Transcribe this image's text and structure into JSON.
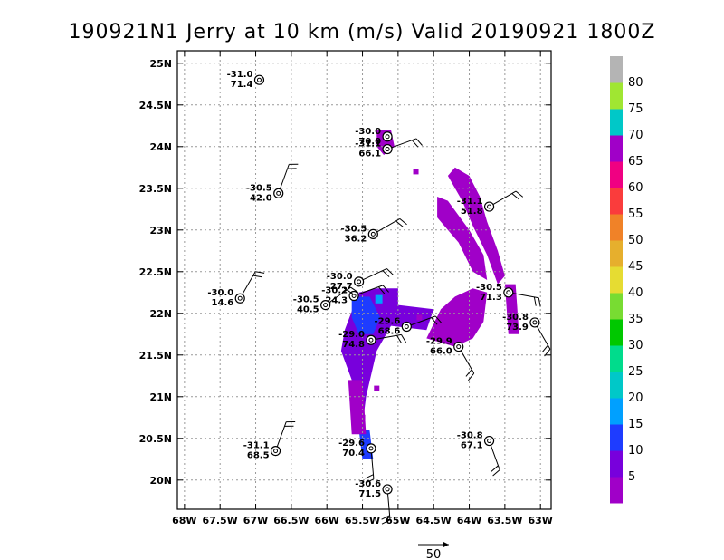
{
  "title": "190921N1 Jerry at 10 km (m/s) Valid 20190921  1800Z",
  "map": {
    "lon_range": [
      -68.1,
      -62.85
    ],
    "lat_range": [
      19.65,
      25.15
    ],
    "lon_ticks": [
      {
        "v": -68,
        "label": "68W"
      },
      {
        "v": -67.5,
        "label": "67.5W"
      },
      {
        "v": -67,
        "label": "67W"
      },
      {
        "v": -66.5,
        "label": "66.5W"
      },
      {
        "v": -66,
        "label": "66W"
      },
      {
        "v": -65.5,
        "label": "65.5W"
      },
      {
        "v": -65,
        "label": "65W"
      },
      {
        "v": -64.5,
        "label": "64.5W"
      },
      {
        "v": -64,
        "label": "64W"
      },
      {
        "v": -63.5,
        "label": "63.5W"
      },
      {
        "v": -63,
        "label": "63W"
      }
    ],
    "lat_ticks": [
      {
        "v": 20,
        "label": "20N"
      },
      {
        "v": 20.5,
        "label": "20.5N"
      },
      {
        "v": 21,
        "label": "21N"
      },
      {
        "v": 21.5,
        "label": "21.5N"
      },
      {
        "v": 22,
        "label": "22N"
      },
      {
        "v": 22.5,
        "label": "22.5N"
      },
      {
        "v": 23,
        "label": "23N"
      },
      {
        "v": 23.5,
        "label": "23.5N"
      },
      {
        "v": 24,
        "label": "24N"
      },
      {
        "v": 24.5,
        "label": "24.5N"
      },
      {
        "v": 25,
        "label": "25N"
      }
    ],
    "grid": true
  },
  "colorbar": {
    "labels": [
      "5",
      "10",
      "15",
      "20",
      "25",
      "30",
      "35",
      "40",
      "45",
      "50",
      "55",
      "60",
      "65",
      "70",
      "75",
      "80"
    ],
    "colors": [
      "#a000c8",
      "#7800dc",
      "#1e3cff",
      "#00a0ff",
      "#00c8c8",
      "#00dc8c",
      "#00c800",
      "#78dc32",
      "#e6dc32",
      "#e6af2d",
      "#f08228",
      "#fa3c3c",
      "#f00082",
      "#a000c8",
      "#00c8c8",
      "#a0e632",
      "#b4b4b4"
    ]
  },
  "vector_key": {
    "label": "50"
  },
  "storm_markers": [
    {
      "lon": -66.95,
      "lat": 24.8,
      "t1": "-31.0",
      "t2": "71.4",
      "barb": false
    },
    {
      "lon": -65.15,
      "lat": 24.12,
      "t1": "-30.0",
      "t2": "70.0",
      "barb": false
    },
    {
      "lon": -65.15,
      "lat": 23.97,
      "t1": "-31.1",
      "t2": "66.1",
      "barb": true,
      "dir": 70
    },
    {
      "lon": -66.68,
      "lat": 23.44,
      "t1": "-30.5",
      "t2": "42.0",
      "barb": true,
      "dir": 20
    },
    {
      "lon": -63.72,
      "lat": 23.28,
      "t1": "-31.1",
      "t2": "51.8",
      "barb": true,
      "dir": 60
    },
    {
      "lon": -65.35,
      "lat": 22.95,
      "t1": "-30.5",
      "t2": "36.2",
      "barb": true,
      "dir": 60
    },
    {
      "lon": -67.22,
      "lat": 22.18,
      "t1": "-30.0",
      "t2": "14.6",
      "barb": true,
      "dir": 30
    },
    {
      "lon": -65.55,
      "lat": 22.38,
      "t1": "-30.0",
      "t2": "27.7",
      "barb": true,
      "dir": 65
    },
    {
      "lon": -65.62,
      "lat": 22.21,
      "t1": "-30.2",
      "t2": "24.3",
      "barb": true,
      "dir": 70
    },
    {
      "lon": -66.02,
      "lat": 22.1,
      "t1": "-30.5",
      "t2": "40.5",
      "barb": true,
      "dir": 55
    },
    {
      "lon": -63.45,
      "lat": 22.25,
      "t1": "-30.5",
      "t2": "71.3",
      "barb": true,
      "dir": 100
    },
    {
      "lon": -64.88,
      "lat": 21.84,
      "t1": "-29.6",
      "t2": "68.6",
      "barb": true,
      "dir": 70
    },
    {
      "lon": -65.38,
      "lat": 21.68,
      "t1": "-29.0",
      "t2": "74.8",
      "barb": true,
      "dir": 80
    },
    {
      "lon": -63.08,
      "lat": 21.89,
      "t1": "-30.8",
      "t2": "73.9",
      "barb": true,
      "dir": 150
    },
    {
      "lon": -64.15,
      "lat": 21.6,
      "t1": "-29.9",
      "t2": "66.0",
      "barb": true,
      "dir": 150
    },
    {
      "lon": -65.38,
      "lat": 20.38,
      "t1": "-29.6",
      "t2": "70.4",
      "barb": true,
      "dir": 175
    },
    {
      "lon": -66.72,
      "lat": 20.35,
      "t1": "-31.1",
      "t2": "68.5",
      "barb": true,
      "dir": 20
    },
    {
      "lon": -63.72,
      "lat": 20.47,
      "t1": "-30.8",
      "t2": "67.1",
      "barb": true,
      "dir": 160
    },
    {
      "lon": -65.15,
      "lat": 19.89,
      "t1": "-30.6",
      "t2": "71.5",
      "barb": true,
      "dir": 175
    }
  ],
  "swaths": [
    {
      "color": "#7800dc",
      "pts": [
        [
          -65.75,
          21.8
        ],
        [
          -65.55,
          22.25
        ],
        [
          -65.3,
          22.3
        ],
        [
          -65.0,
          22.3
        ],
        [
          -65.0,
          22.1
        ],
        [
          -64.5,
          22.05
        ],
        [
          -64.6,
          21.8
        ],
        [
          -65.1,
          21.85
        ],
        [
          -65.3,
          21.55
        ],
        [
          -65.45,
          21.0
        ],
        [
          -65.5,
          20.65
        ],
        [
          -65.6,
          20.6
        ],
        [
          -65.65,
          21.2
        ],
        [
          -65.8,
          21.55
        ]
      ]
    },
    {
      "color": "#1e3cff",
      "pts": [
        [
          -65.65,
          22.2
        ],
        [
          -65.4,
          22.2
        ],
        [
          -65.25,
          21.95
        ],
        [
          -65.35,
          21.75
        ],
        [
          -65.55,
          21.75
        ],
        [
          -65.65,
          21.95
        ]
      ]
    },
    {
      "color": "#1e3cff",
      "pts": [
        [
          -65.55,
          20.6
        ],
        [
          -65.4,
          20.6
        ],
        [
          -65.35,
          20.25
        ],
        [
          -65.5,
          20.25
        ]
      ]
    },
    {
      "color": "#00a0ff",
      "pts": [
        [
          -65.32,
          22.22
        ],
        [
          -65.22,
          22.22
        ],
        [
          -65.22,
          22.12
        ],
        [
          -65.32,
          22.12
        ]
      ]
    },
    {
      "color": "#a000c8",
      "pts": [
        [
          -64.4,
          22.05
        ],
        [
          -64.2,
          22.2
        ],
        [
          -63.95,
          22.3
        ],
        [
          -63.75,
          22.25
        ],
        [
          -63.8,
          21.9
        ],
        [
          -63.95,
          21.7
        ],
        [
          -64.2,
          21.6
        ],
        [
          -64.6,
          21.7
        ]
      ]
    },
    {
      "color": "#a000c8",
      "pts": [
        [
          -64.45,
          23.4
        ],
        [
          -64.3,
          23.35
        ],
        [
          -64.0,
          23.0
        ],
        [
          -63.8,
          22.7
        ],
        [
          -63.75,
          22.4
        ],
        [
          -63.95,
          22.5
        ],
        [
          -64.15,
          22.85
        ],
        [
          -64.45,
          23.15
        ]
      ]
    },
    {
      "color": "#a000c8",
      "pts": [
        [
          -64.2,
          23.75
        ],
        [
          -64.0,
          23.65
        ],
        [
          -63.85,
          23.4
        ],
        [
          -63.75,
          23.1
        ],
        [
          -63.6,
          22.75
        ],
        [
          -63.5,
          22.45
        ],
        [
          -63.6,
          22.35
        ],
        [
          -63.75,
          22.7
        ],
        [
          -63.95,
          23.05
        ],
        [
          -64.1,
          23.35
        ],
        [
          -64.3,
          23.65
        ]
      ]
    },
    {
      "color": "#a000c8",
      "pts": [
        [
          -65.3,
          24.2
        ],
        [
          -65.1,
          24.2
        ],
        [
          -65.05,
          24.0
        ],
        [
          -65.2,
          23.9
        ],
        [
          -65.3,
          24.0
        ]
      ]
    },
    {
      "color": "#a000c8",
      "pts": [
        [
          -63.5,
          22.35
        ],
        [
          -63.35,
          22.35
        ],
        [
          -63.3,
          21.75
        ],
        [
          -63.45,
          21.75
        ]
      ]
    },
    {
      "color": "#a000c8",
      "pts": [
        [
          -65.7,
          21.2
        ],
        [
          -65.5,
          21.2
        ],
        [
          -65.45,
          20.55
        ],
        [
          -65.65,
          20.55
        ]
      ]
    }
  ],
  "specks": [
    [
      -64.75,
      23.7
    ],
    [
      -65.5,
      20.75
    ],
    [
      -65.3,
      21.1
    ],
    [
      -64.7,
      21.95
    ]
  ]
}
